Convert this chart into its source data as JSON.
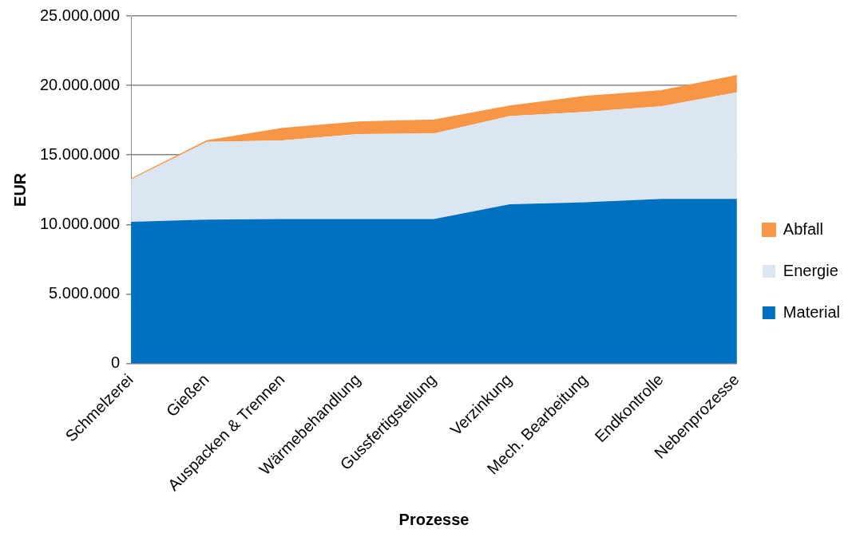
{
  "chart_data": {
    "type": "area",
    "stacked": true,
    "xlabel": "Prozesse",
    "ylabel": "EUR",
    "categories": [
      "Schmelzerei",
      "Gießen",
      "Auspacken & Trennen",
      "Wärmebehandlung",
      "Gussfertigstellung",
      "Verzinkung",
      "Mech. Bearbeitung",
      "Endkontrolle",
      "Nebenprozesse"
    ],
    "series": [
      {
        "name": "Material",
        "color": "#0070c0",
        "values": [
          10200000,
          10350000,
          10400000,
          10400000,
          10400000,
          11450000,
          11600000,
          11850000,
          11850000
        ]
      },
      {
        "name": "Energie",
        "color": "#dce6f2",
        "values": [
          3050000,
          5600000,
          5650000,
          6100000,
          6150000,
          6350000,
          6500000,
          6650000,
          7650000
        ]
      },
      {
        "name": "Abfall",
        "color": "#f79646",
        "values": [
          0,
          50000,
          850000,
          850000,
          950000,
          700000,
          1100000,
          1100000,
          1200000
        ]
      }
    ],
    "ylim": [
      0,
      25000000
    ],
    "yticks": [
      0,
      {
        "value": 5000000,
        "label": "5.000.000"
      },
      {
        "value": 10000000,
        "label": "10.000.000"
      },
      {
        "value": 15000000,
        "label": "15.000.000"
      },
      {
        "value": 20000000,
        "label": "20.000.000"
      },
      {
        "value": 25000000,
        "label": "25.000.000"
      }
    ],
    "grid": "y",
    "legend": "right"
  }
}
